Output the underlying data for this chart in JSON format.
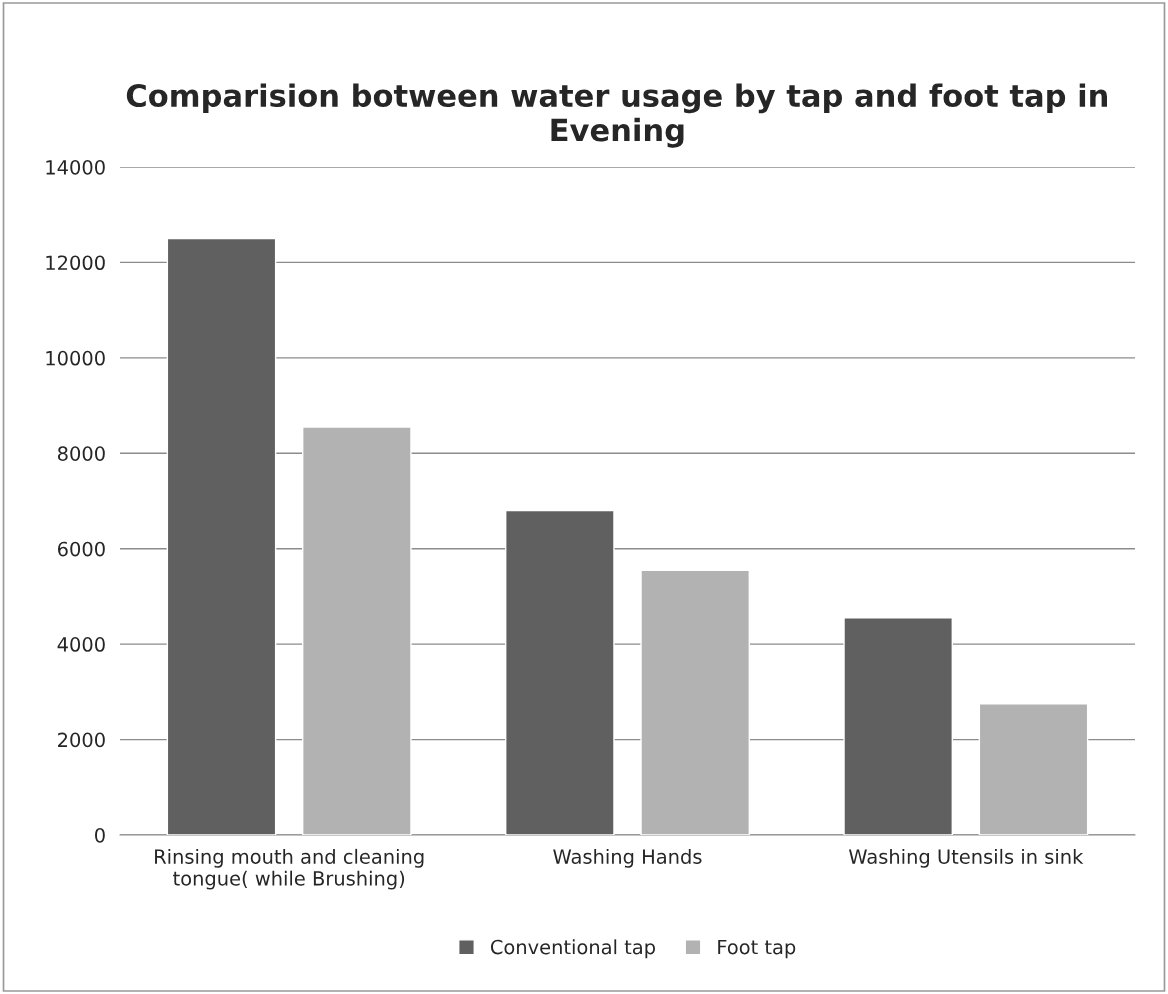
{
  "chart_data": {
    "type": "bar",
    "title": "Comparision botween water usage by tap and foot tap in Evening",
    "categories": [
      "Rinsing mouth and cleaning\ntongue( while Brushing)",
      "Washing Hands",
      "Washing Utensils in sink"
    ],
    "series": [
      {
        "name": "Conventional tap",
        "color": "#606060",
        "values": [
          12500,
          6800,
          4550
        ]
      },
      {
        "name": "Foot tap",
        "color": "#b2b2b2",
        "values": [
          8550,
          5550,
          2750
        ]
      }
    ],
    "ylim": [
      0,
      14000
    ],
    "yticks": [
      0,
      2000,
      4000,
      6000,
      8000,
      10000,
      12000,
      14000
    ],
    "grid": "y",
    "legend": "bottom"
  }
}
